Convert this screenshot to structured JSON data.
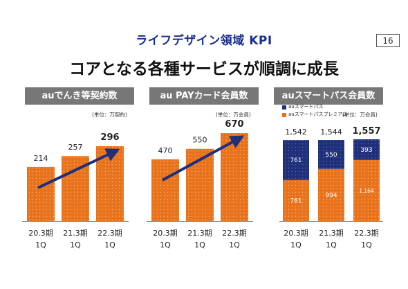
{
  "header": {
    "title": "ライフデザイン領域 KPI",
    "page_number": "16",
    "subtitle": "コアとなる各種サービスが順調に成長"
  },
  "colors": {
    "orange": "#e8731c",
    "navy": "#1f2f7a",
    "header_gray": "#777777",
    "title_blue": "#1a2f8f"
  },
  "chart_data": [
    {
      "type": "bar",
      "title": "auでんき等契約数",
      "unit": "(単位：万契約)",
      "categories": [
        [
          "20.3期",
          "1Q"
        ],
        [
          "21.3期",
          "1Q"
        ],
        [
          "22.3期",
          "1Q"
        ]
      ],
      "values": [
        214,
        257,
        296
      ],
      "labels": [
        "214",
        "257",
        "296"
      ],
      "trend_arrow": true
    },
    {
      "type": "bar",
      "title": "au PAYカード会員数",
      "unit": "(単位：万会員)",
      "categories": [
        [
          "20.3期",
          "1Q"
        ],
        [
          "21.3期",
          "1Q"
        ],
        [
          "22.3期",
          "1Q"
        ]
      ],
      "values": [
        470,
        550,
        670
      ],
      "labels": [
        "470",
        "550",
        "670"
      ],
      "trend_arrow": true
    },
    {
      "type": "bar",
      "stacked": true,
      "title": "auスマートパス会員数",
      "unit": "(単位：万会員)",
      "categories": [
        [
          "20.3期",
          "1Q"
        ],
        [
          "21.3期",
          "1Q"
        ],
        [
          "22.3期",
          "1Q"
        ]
      ],
      "series": [
        {
          "name": "auスマートパスプレミアム",
          "values": [
            781,
            994,
            1164
          ],
          "labels": [
            "781",
            "994",
            "1,164"
          ]
        },
        {
          "name": "auスマートパス",
          "values": [
            761,
            550,
            393
          ],
          "labels": [
            "761",
            "550",
            "393"
          ]
        }
      ],
      "totals": [
        1542,
        1544,
        1557
      ],
      "total_labels": [
        "1,542",
        "1,544",
        "1,557"
      ],
      "legend": [
        "auスマートパス",
        "auスマートパスプレミアム"
      ]
    }
  ]
}
